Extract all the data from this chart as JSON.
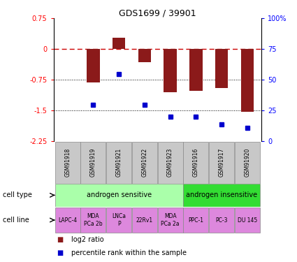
{
  "title": "GDS1699 / 39901",
  "samples": [
    "GSM91918",
    "GSM91919",
    "GSM91921",
    "GSM91922",
    "GSM91923",
    "GSM91916",
    "GSM91917",
    "GSM91920"
  ],
  "log2_ratio": [
    0.0,
    -0.82,
    0.28,
    -0.32,
    -1.05,
    -1.02,
    -0.95,
    -1.52
  ],
  "pct_rank": [
    null,
    30,
    55,
    30,
    20,
    20,
    14,
    11
  ],
  "bar_color": "#8B1A1A",
  "dot_color": "#0000CD",
  "dashed_color": "#CC0000",
  "yticks_left": [
    0.75,
    0,
    -0.75,
    -1.5,
    -2.25
  ],
  "yticks_right": [
    100,
    75,
    50,
    25,
    0
  ],
  "cell_type_groups": [
    {
      "label": "androgen sensitive",
      "start": 0,
      "end": 4,
      "color": "#AAFFAA"
    },
    {
      "label": "androgen insensitive",
      "start": 5,
      "end": 7,
      "color": "#33DD33"
    }
  ],
  "cell_lines": [
    {
      "label": "LAPC-4",
      "col": 0
    },
    {
      "label": "MDA\nPCa 2b",
      "col": 1
    },
    {
      "label": "LNCa\nP",
      "col": 2
    },
    {
      "label": "22Rv1",
      "col": 3
    },
    {
      "label": "MDA\nPCa 2a",
      "col": 4
    },
    {
      "label": "PPC-1",
      "col": 5
    },
    {
      "label": "PC-3",
      "col": 6
    },
    {
      "label": "DU 145",
      "col": 7
    }
  ],
  "cell_line_color": "#DD88DD",
  "sample_box_color": "#C8C8C8"
}
